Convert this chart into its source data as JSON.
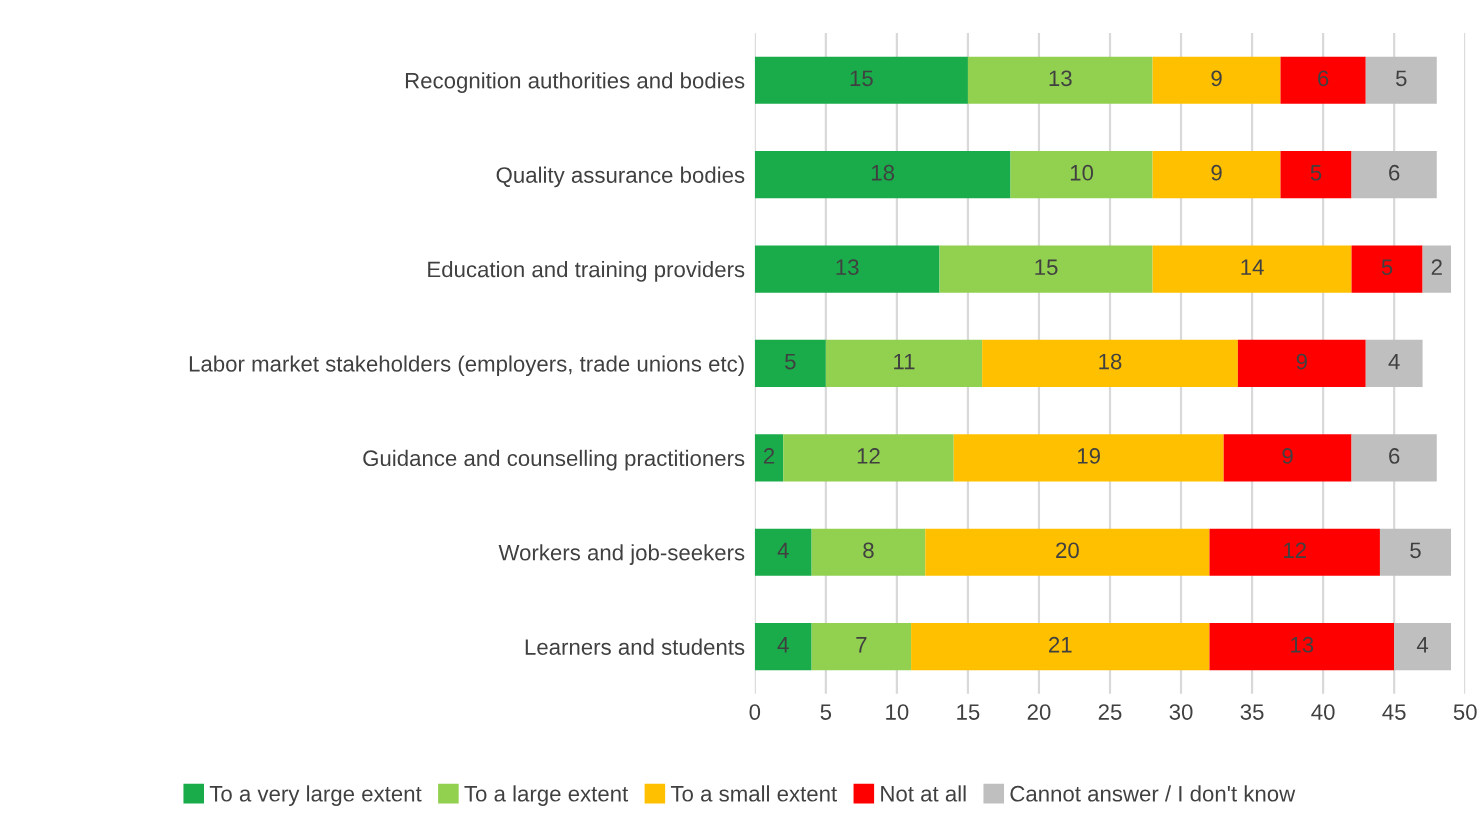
{
  "chart_data": {
    "type": "bar",
    "orientation": "horizontal",
    "stacked": true,
    "data_labels": true,
    "grid": "x",
    "legend": "bottom",
    "categories": [
      "Recognition authorities and bodies",
      "Quality assurance bodies",
      "Education and training providers",
      "Labor market stakeholders (employers, trade unions etc)",
      "Guidance and counselling practitioners",
      "Workers and job-seekers",
      "Learners and students"
    ],
    "series": [
      {
        "name": "To a very large extent",
        "color": "#1aab4b",
        "values": [
          15,
          18,
          13,
          5,
          2,
          4,
          4
        ]
      },
      {
        "name": "To a large extent",
        "color": "#92d050",
        "values": [
          13,
          10,
          15,
          11,
          12,
          8,
          7
        ]
      },
      {
        "name": "To a small extent",
        "color": "#ffc000",
        "values": [
          9,
          9,
          14,
          18,
          19,
          20,
          21
        ]
      },
      {
        "name": "Not at all",
        "color": "#ff0000",
        "values": [
          6,
          5,
          5,
          9,
          9,
          12,
          13
        ]
      },
      {
        "name": "Cannot answer / I don't know",
        "color": "#bfbfbf",
        "values": [
          5,
          6,
          2,
          4,
          6,
          5,
          4
        ]
      }
    ],
    "xlim": [
      0,
      50
    ],
    "xticks": [
      0,
      5,
      10,
      15,
      20,
      25,
      30,
      35,
      40,
      45,
      50
    ]
  }
}
